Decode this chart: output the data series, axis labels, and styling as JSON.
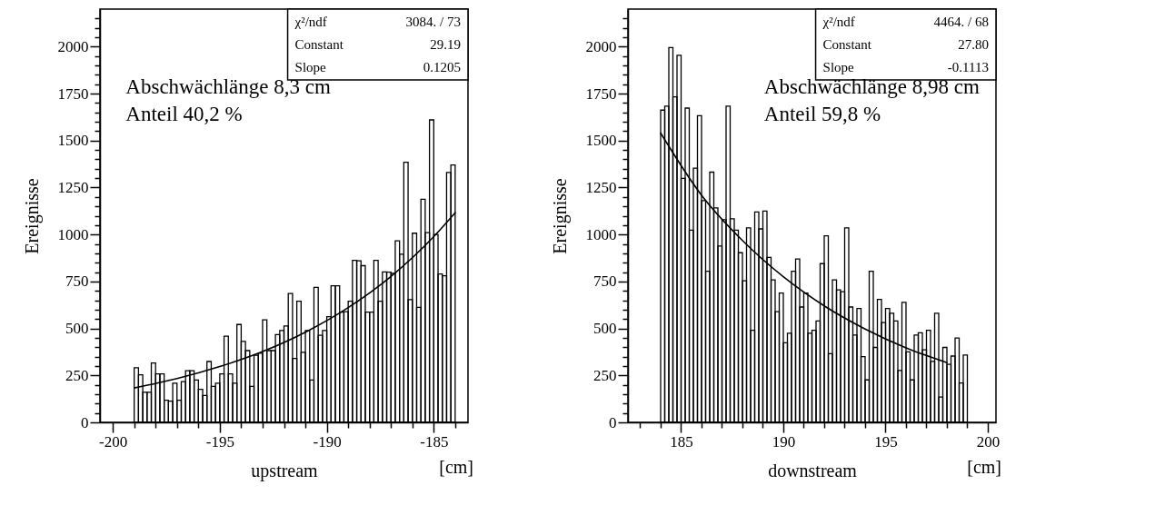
{
  "chart_data": [
    {
      "type": "histogram",
      "xlabel": "upstream",
      "ylabel": "Ereignisse",
      "xlim": [
        -200.6,
        -183.4
      ],
      "ylim": [
        0,
        2200
      ],
      "xticks": [
        -200,
        {
          "value": -199,
          "label": null
        },
        {
          "value": -198,
          "label": null
        },
        {
          "value": -197,
          "label": null
        },
        {
          "value": -196,
          "label": null
        },
        -195,
        {
          "value": -194,
          "label": null
        },
        {
          "value": -193,
          "label": null
        },
        {
          "value": -192,
          "label": null
        },
        {
          "value": -191,
          "label": null
        },
        -190,
        {
          "value": -189,
          "label": null
        },
        {
          "value": -188,
          "label": null
        },
        {
          "value": -187,
          "label": null
        },
        {
          "value": -186,
          "label": null
        },
        -185,
        {
          "value": -184,
          "label": null
        }
      ],
      "yticks": [
        0,
        {
          "value": 50,
          "label": null
        },
        {
          "value": 100,
          "label": null
        },
        {
          "value": 150,
          "label": null
        },
        {
          "value": 200,
          "label": null
        },
        250,
        {
          "value": 300,
          "label": null
        },
        {
          "value": 350,
          "label": null
        },
        {
          "value": 400,
          "label": null
        },
        {
          "value": 450,
          "label": null
        },
        500,
        {
          "value": 550,
          "label": null
        },
        {
          "value": 600,
          "label": null
        },
        {
          "value": 650,
          "label": null
        },
        {
          "value": 700,
          "label": null
        },
        750,
        {
          "value": 800,
          "label": null
        },
        {
          "value": 850,
          "label": null
        },
        {
          "value": 900,
          "label": null
        },
        {
          "value": 950,
          "label": null
        },
        1000,
        {
          "value": 1050,
          "label": null
        },
        {
          "value": 1100,
          "label": null
        },
        {
          "value": 1150,
          "label": null
        },
        {
          "value": 1200,
          "label": null
        },
        1250,
        {
          "value": 1300,
          "label": null
        },
        {
          "value": 1350,
          "label": null
        },
        {
          "value": 1400,
          "label": null
        },
        {
          "value": 1450,
          "label": null
        },
        1500,
        {
          "value": 1550,
          "label": null
        },
        {
          "value": 1600,
          "label": null
        },
        {
          "value": 1650,
          "label": null
        },
        {
          "value": 1700,
          "label": null
        },
        1750,
        {
          "value": 1800,
          "label": null
        },
        {
          "value": 1850,
          "label": null
        },
        {
          "value": 1900,
          "label": null
        },
        {
          "value": 1950,
          "label": null
        },
        2000,
        {
          "value": 2050,
          "label": null
        },
        {
          "value": 2100,
          "label": null
        },
        {
          "value": 2150,
          "label": null
        }
      ],
      "series": [
        {
          "type": "histogram",
          "color": "#000000",
          "bins": [
            -199,
            -198.8,
            -198.6,
            -198.4,
            -198.2,
            -198,
            -197.8,
            -197.6,
            -197.4,
            -197.2,
            -197,
            -196.8,
            -196.6,
            -196.4,
            -196.2,
            -196,
            -195.8,
            -195.6,
            -195.4,
            -195.2,
            -195,
            -194.8,
            -194.6,
            -194.4,
            -194.2,
            -194,
            -193.8,
            -193.6,
            -193.4,
            -193.2,
            -193,
            -192.8,
            -192.6,
            -192.4,
            -192.2,
            -192,
            -191.8,
            -191.6,
            -191.4,
            -191.2,
            -191,
            -190.8,
            -190.6,
            -190.4,
            -190.2,
            -190,
            -189.8,
            -189.6,
            -189.4,
            -189.2,
            -189,
            -188.8,
            -188.6,
            -188.4,
            -188.2,
            -188,
            -187.8,
            -187.6,
            -187.4,
            -187.2,
            -187,
            -186.8,
            -186.6,
            -186.4,
            -186.2,
            -186,
            -185.8,
            -185.6,
            -185.4,
            -185.2,
            -185,
            -184.8,
            -184.6,
            -184.4,
            -184.2,
            -184
          ],
          "values": [
            291,
            253,
            160,
            160,
            316,
            258,
            258,
            118,
            113,
            209,
            118,
            217,
            275,
            275,
            225,
            176,
            143,
            324,
            192,
            209,
            258,
            459,
            258,
            209,
            521,
            431,
            382,
            192,
            357,
            368,
            546,
            382,
            382,
            467,
            489,
            513,
            686,
            340,
            645,
            373,
            489,
            225,
            719,
            464,
            489,
            563,
            727,
            727,
            587,
            589,
            645,
            862,
            860,
            834,
            587,
            587,
            862,
            645,
            801,
            800,
            793,
            966,
            895,
            1385,
            653,
            1007,
            612,
            1188,
            1010,
            1610,
            1000,
            790,
            780,
            1330,
            1370
          ]
        },
        {
          "type": "line",
          "color": "#000000",
          "x": [
            -199,
            -197,
            -195,
            -193,
            -191,
            -189,
            -187,
            -185,
            -184
          ],
          "values": [
            183,
            233,
            297,
            377,
            480,
            611,
            777,
            989,
            1116
          ]
        }
      ],
      "annotations": [
        "χ²/ndf",
        "3084.  /  73",
        "Constant",
        "29.19",
        "Slope",
        "0.1205",
        "Abschwächlänge 8,3 cm",
        "Anteil 40,2 %",
        "[cm]"
      ]
    },
    {
      "type": "histogram",
      "xlabel": "downstream",
      "ylabel": "Ereignisse",
      "xlim": [
        182.4,
        200.4
      ],
      "ylim": [
        0,
        2200
      ],
      "xticks": [
        {
          "value": 183,
          "label": null
        },
        {
          "value": 184,
          "label": null
        },
        185,
        {
          "value": 186,
          "label": null
        },
        {
          "value": 187,
          "label": null
        },
        {
          "value": 188,
          "label": null
        },
        {
          "value": 189,
          "label": null
        },
        190,
        {
          "value": 191,
          "label": null
        },
        {
          "value": 192,
          "label": null
        },
        {
          "value": 193,
          "label": null
        },
        {
          "value": 194,
          "label": null
        },
        195,
        {
          "value": 196,
          "label": null
        },
        {
          "value": 197,
          "label": null
        },
        {
          "value": 198,
          "label": null
        },
        {
          "value": 199,
          "label": null
        },
        200
      ],
      "yticks": [
        0,
        {
          "value": 50,
          "label": null
        },
        {
          "value": 100,
          "label": null
        },
        {
          "value": 150,
          "label": null
        },
        {
          "value": 200,
          "label": null
        },
        250,
        {
          "value": 300,
          "label": null
        },
        {
          "value": 350,
          "label": null
        },
        {
          "value": 400,
          "label": null
        },
        {
          "value": 450,
          "label": null
        },
        500,
        {
          "value": 550,
          "label": null
        },
        {
          "value": 600,
          "label": null
        },
        {
          "value": 650,
          "label": null
        },
        {
          "value": 700,
          "label": null
        },
        750,
        {
          "value": 800,
          "label": null
        },
        {
          "value": 850,
          "label": null
        },
        {
          "value": 900,
          "label": null
        },
        {
          "value": 950,
          "label": null
        },
        1000,
        {
          "value": 1050,
          "label": null
        },
        {
          "value": 1100,
          "label": null
        },
        {
          "value": 1150,
          "label": null
        },
        {
          "value": 1200,
          "label": null
        },
        1250,
        {
          "value": 1300,
          "label": null
        },
        {
          "value": 1350,
          "label": null
        },
        {
          "value": 1400,
          "label": null
        },
        {
          "value": 1450,
          "label": null
        },
        1500,
        {
          "value": 1550,
          "label": null
        },
        {
          "value": 1600,
          "label": null
        },
        {
          "value": 1650,
          "label": null
        },
        {
          "value": 1700,
          "label": null
        },
        1750,
        {
          "value": 1800,
          "label": null
        },
        {
          "value": 1850,
          "label": null
        },
        {
          "value": 1900,
          "label": null
        },
        {
          "value": 1950,
          "label": null
        },
        2000,
        {
          "value": 2050,
          "label": null
        },
        {
          "value": 2100,
          "label": null
        },
        {
          "value": 2150,
          "label": null
        }
      ],
      "series": [
        {
          "type": "histogram",
          "color": "#000000",
          "bins": [
            184,
            184.2,
            184.4,
            184.6,
            184.8,
            185,
            185.2,
            185.4,
            185.6,
            185.8,
            186,
            186.2,
            186.4,
            186.6,
            186.8,
            187,
            187.2,
            187.4,
            187.6,
            187.8,
            188,
            188.2,
            188.4,
            188.6,
            188.8,
            189,
            189.2,
            189.4,
            189.6,
            189.8,
            190,
            190.2,
            190.4,
            190.6,
            190.8,
            191,
            191.2,
            191.4,
            191.6,
            191.8,
            192,
            192.2,
            192.4,
            192.6,
            192.8,
            193,
            193.2,
            193.4,
            193.6,
            193.8,
            194,
            194.2,
            194.4,
            194.6,
            194.8,
            195,
            195.2,
            195.4,
            195.6,
            195.8,
            196,
            196.2,
            196.4,
            196.6,
            196.8,
            197,
            197.2,
            197.4,
            197.6,
            197.8,
            198,
            198.2,
            198.4,
            198.6,
            198.8,
            199
          ],
          "values": [
            1662,
            1683,
            1995,
            1733,
            1954,
            1299,
            1673,
            1023,
            1353,
            1632,
            1180,
            804,
            1332,
            1142,
            939,
            1079,
            1683,
            1084,
            1023,
            903,
            754,
            1035,
            490,
            1120,
            1030,
            1125,
            878,
            759,
            589,
            688,
            424,
            474,
            804,
            870,
            614,
            688,
            474,
            490,
            540,
            845,
            993,
            366,
            759,
            705,
            696,
            1035,
            614,
            465,
            606,
            350,
            226,
            804,
            399,
            655,
            531,
            606,
            581,
            540,
            276,
            639,
            375,
            226,
            465,
            477,
            386,
            490,
            325,
            581,
            135,
            399,
            309,
            353,
            449,
            210,
            358
          ]
        },
        {
          "type": "line",
          "color": "#000000",
          "x": [
            184,
            186,
            188,
            190,
            192,
            194,
            196,
            198
          ],
          "values": [
            1540,
            1209,
            968,
            775,
            620,
            497,
            397,
            318
          ]
        }
      ],
      "annotations": [
        "χ²/ndf",
        "4464.  /  68",
        "Constant",
        "27.80",
        "Slope",
        "-0.1113",
        "Abschwächlänge 8,98 cm",
        "Anteil 59,8 %",
        "[cm]"
      ]
    }
  ]
}
